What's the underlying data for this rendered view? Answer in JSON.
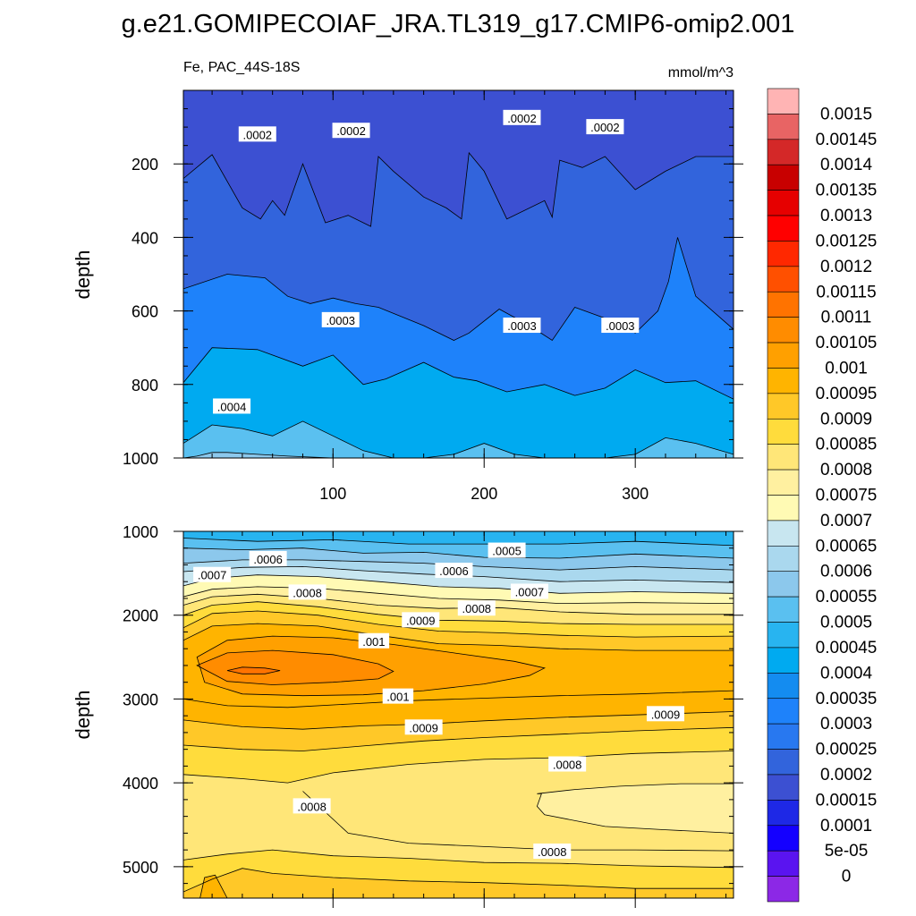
{
  "title": "g.e21.GOMIPECOIAF_JRA.TL319_g17.CMIP6-omip2.001",
  "chart_data": [
    {
      "type": "contour",
      "panel": "upper",
      "left_label": "Fe, PAC_44S-18S",
      "right_label": "mmol/m^3",
      "ylabel": "depth",
      "xlabel": "",
      "xlim": [
        1,
        365
      ],
      "ylim": [
        1000,
        0
      ],
      "x_ticks": [
        100,
        200,
        300
      ],
      "x_tick_labels": [
        "100",
        "200",
        "300"
      ],
      "y_ticks": [
        200,
        400,
        600,
        800,
        1000
      ],
      "y_tick_labels": [
        "200",
        "400",
        "600",
        "800",
        "1000"
      ],
      "contour_labels": [
        {
          "text": ".0002",
          "x": 50,
          "y": 120
        },
        {
          "text": ".0002",
          "x": 112,
          "y": 110
        },
        {
          "text": ".0002",
          "x": 225,
          "y": 75
        },
        {
          "text": ".0002",
          "x": 280,
          "y": 100
        },
        {
          "text": ".0003",
          "x": 105,
          "y": 625
        },
        {
          "text": ".0003",
          "x": 225,
          "y": 640
        },
        {
          "text": ".0003",
          "x": 290,
          "y": 640
        },
        {
          "text": ".0004",
          "x": 33,
          "y": 860
        }
      ],
      "contours": [
        {
          "level": 0.0002,
          "x": [
            1,
            20,
            40,
            52,
            60,
            68,
            80,
            95,
            110,
            125,
            130,
            140,
            160,
            175,
            185,
            190,
            200,
            215,
            240,
            245,
            250,
            265,
            280,
            300,
            320,
            340,
            365
          ],
          "y": [
            240,
            175,
            320,
            350,
            300,
            340,
            200,
            360,
            340,
            370,
            180,
            220,
            290,
            320,
            350,
            170,
            220,
            350,
            300,
            345,
            190,
            210,
            180,
            270,
            220,
            180,
            180
          ]
        },
        {
          "level": 0.0003,
          "x": [
            1,
            30,
            55,
            70,
            85,
            100,
            115,
            130,
            160,
            180,
            190,
            210,
            230,
            245,
            260,
            280,
            300,
            315,
            322,
            328,
            340,
            365
          ],
          "y": [
            540,
            500,
            510,
            560,
            580,
            565,
            580,
            590,
            640,
            680,
            660,
            595,
            640,
            680,
            590,
            620,
            660,
            600,
            520,
            400,
            560,
            650
          ]
        },
        {
          "level": 0.0004,
          "x": [
            1,
            20,
            50,
            80,
            100,
            120,
            135,
            160,
            180,
            195,
            215,
            240,
            260,
            280,
            300,
            320,
            340,
            365
          ],
          "y": [
            795,
            700,
            705,
            750,
            720,
            800,
            785,
            740,
            780,
            790,
            820,
            800,
            830,
            810,
            760,
            795,
            790,
            840
          ]
        },
        {
          "level": 0.0005,
          "x": [
            1,
            20,
            40,
            60,
            80,
            100,
            120,
            140,
            160,
            180,
            200,
            220,
            240,
            260,
            280,
            300,
            320,
            340,
            365
          ],
          "y": [
            960,
            910,
            920,
            940,
            900,
            940,
            980,
            1000,
            1000,
            990,
            960,
            990,
            1000,
            1000,
            1000,
            990,
            945,
            960,
            990
          ]
        },
        {
          "level": 0.00055,
          "x": [
            1,
            10,
            20,
            30,
            50,
            70,
            100
          ],
          "y": [
            1000,
            995,
            985,
            985,
            990,
            995,
            1000
          ]
        }
      ]
    },
    {
      "type": "contour",
      "panel": "lower",
      "ylabel": "depth",
      "xlabel": "",
      "xlim": [
        1,
        365
      ],
      "ylim": [
        5375,
        1000
      ],
      "x_ticks": [
        100,
        200,
        300
      ],
      "y_ticks": [
        1000,
        2000,
        3000,
        4000,
        5000
      ],
      "y_tick_labels": [
        "1000",
        "2000",
        "3000",
        "4000",
        "5000"
      ],
      "contour_labels": [
        {
          "text": ".0006",
          "x": 57,
          "y": 1330
        },
        {
          "text": ".0007",
          "x": 20,
          "y": 1520
        },
        {
          "text": ".0005",
          "x": 215,
          "y": 1230
        },
        {
          "text": ".0006",
          "x": 180,
          "y": 1470
        },
        {
          "text": ".0007",
          "x": 230,
          "y": 1720
        },
        {
          "text": ".0008",
          "x": 83,
          "y": 1730
        },
        {
          "text": ".0008",
          "x": 195,
          "y": 1920
        },
        {
          "text": ".0009",
          "x": 158,
          "y": 2060
        },
        {
          "text": ".001",
          "x": 127,
          "y": 2310
        },
        {
          "text": ".001",
          "x": 143,
          "y": 2970
        },
        {
          "text": ".0009",
          "x": 160,
          "y": 3340
        },
        {
          "text": ".0009",
          "x": 320,
          "y": 3180
        },
        {
          "text": ".0008",
          "x": 255,
          "y": 3780
        },
        {
          "text": ".0008",
          "x": 86,
          "y": 4280
        },
        {
          "text": ".0008",
          "x": 245,
          "y": 4820
        }
      ],
      "contours": [
        {
          "level": 0.0005,
          "x": [
            1,
            50,
            100,
            150,
            200,
            250,
            300,
            365
          ],
          "y": [
            1080,
            1120,
            1100,
            1150,
            1150,
            1150,
            1120,
            1170
          ]
        },
        {
          "level": 0.00055,
          "x": [
            1,
            40,
            80,
            120,
            160,
            200,
            250,
            300,
            365
          ],
          "y": [
            1200,
            1220,
            1200,
            1260,
            1250,
            1310,
            1320,
            1270,
            1320
          ]
        },
        {
          "level": 0.0006,
          "x": [
            1,
            40,
            80,
            120,
            160,
            200,
            250,
            300,
            365
          ],
          "y": [
            1380,
            1340,
            1340,
            1360,
            1380,
            1420,
            1460,
            1420,
            1460
          ]
        },
        {
          "level": 0.00065,
          "x": [
            1,
            40,
            80,
            120,
            160,
            200,
            250,
            300,
            365
          ],
          "y": [
            1480,
            1430,
            1420,
            1470,
            1510,
            1540,
            1600,
            1580,
            1610
          ]
        },
        {
          "level": 0.0007,
          "x": [
            1,
            20,
            50,
            90,
            130,
            170,
            210,
            250,
            300,
            365
          ],
          "y": [
            1650,
            1560,
            1520,
            1540,
            1600,
            1660,
            1680,
            1740,
            1720,
            1740
          ]
        },
        {
          "level": 0.00075,
          "x": [
            1,
            20,
            50,
            90,
            130,
            170,
            210,
            250,
            300,
            365
          ],
          "y": [
            1780,
            1690,
            1660,
            1680,
            1740,
            1800,
            1820,
            1860,
            1850,
            1860
          ]
        },
        {
          "level": 0.0008,
          "x": [
            1,
            20,
            50,
            90,
            130,
            170,
            210,
            250,
            300,
            365
          ],
          "y": [
            1880,
            1780,
            1750,
            1800,
            1880,
            1920,
            1910,
            1960,
            1990,
            1990
          ]
        },
        {
          "level": 0.00085,
          "x": [
            1,
            20,
            50,
            90,
            130,
            170,
            210,
            250,
            300,
            365
          ],
          "y": [
            2000,
            1880,
            1840,
            1900,
            1990,
            2060,
            2070,
            2100,
            2110,
            2110
          ]
        },
        {
          "level": 0.0009,
          "x": [
            1,
            20,
            50,
            90,
            130,
            170,
            210,
            250,
            300,
            365
          ],
          "y": [
            2150,
            1980,
            1950,
            2000,
            2110,
            2190,
            2210,
            2240,
            2260,
            2250
          ]
        },
        {
          "level": 0.00095,
          "x": [
            1,
            20,
            50,
            90,
            130,
            170,
            210,
            250,
            300,
            365
          ],
          "y": [
            2300,
            2130,
            2100,
            2130,
            2240,
            2340,
            2360,
            2400,
            2420,
            2420
          ]
        },
        {
          "level": 0.001,
          "x": [
            10,
            30,
            60,
            100,
            140,
            180,
            220,
            240,
            230,
            200,
            160,
            120,
            80,
            40,
            15,
            10
          ],
          "y": [
            2500,
            2300,
            2250,
            2270,
            2350,
            2450,
            2550,
            2630,
            2720,
            2820,
            2900,
            2950,
            2960,
            2940,
            2800,
            2500
          ],
          "closed": true
        },
        {
          "level": 0.00105,
          "x": [
            10,
            30,
            60,
            100,
            130,
            140,
            130,
            100,
            60,
            30,
            10
          ],
          "y": [
            2600,
            2450,
            2420,
            2470,
            2580,
            2670,
            2760,
            2800,
            2830,
            2790,
            2600
          ],
          "closed": true
        },
        {
          "level": 0.0011,
          "x": [
            30,
            40,
            55,
            65,
            55,
            40,
            30
          ],
          "y": [
            2660,
            2620,
            2630,
            2660,
            2700,
            2700,
            2660
          ],
          "closed": true
        },
        {
          "level": 0.00095,
          "x": [
            1,
            30,
            70,
            110,
            150,
            200,
            250,
            300,
            365
          ],
          "y": [
            3000,
            3080,
            3100,
            3060,
            3020,
            2990,
            2960,
            2940,
            2900
          ]
        },
        {
          "level": 0.0009,
          "x": [
            1,
            40,
            80,
            120,
            160,
            200,
            250,
            300,
            365
          ],
          "y": [
            3250,
            3330,
            3360,
            3320,
            3300,
            3260,
            3220,
            3190,
            3150
          ]
        },
        {
          "level": 0.00085,
          "x": [
            1,
            40,
            80,
            120,
            160,
            200,
            250,
            300,
            365
          ],
          "y": [
            3550,
            3600,
            3620,
            3560,
            3500,
            3460,
            3420,
            3380,
            3340
          ]
        },
        {
          "level": 0.0008,
          "x": [
            1,
            40,
            70,
            100,
            150,
            200,
            250,
            300,
            365
          ],
          "y": [
            3900,
            3950,
            4000,
            3880,
            3780,
            3720,
            3700,
            3650,
            3620
          ]
        },
        {
          "level": 0.00075,
          "x": [
            235,
            260,
            290,
            330,
            365,
            365,
            320,
            280,
            240,
            235,
            238
          ],
          "y": [
            4130,
            4080,
            4040,
            4010,
            4010,
            4600,
            4560,
            4520,
            4380,
            4280,
            4130
          ],
          "closed": true
        },
        {
          "level": 0.0008,
          "x": [
            80,
            110,
            150,
            200,
            250,
            300,
            365
          ],
          "y": [
            4100,
            4600,
            4720,
            4760,
            4800,
            4800,
            4810
          ]
        },
        {
          "level": 0.00085,
          "x": [
            1,
            30,
            60,
            100,
            150,
            200,
            250,
            300,
            365
          ],
          "y": [
            4920,
            4850,
            4800,
            4870,
            4900,
            4950,
            4960,
            4990,
            5010
          ]
        },
        {
          "level": 0.0009,
          "x": [
            1,
            20,
            40,
            60,
            100,
            150,
            200,
            250,
            300,
            365
          ],
          "y": [
            5300,
            5150,
            5020,
            5080,
            5130,
            5170,
            5190,
            5220,
            5260,
            5260
          ]
        },
        {
          "level": 0.00095,
          "x": [
            12,
            15,
            22,
            30
          ],
          "y": [
            5375,
            5130,
            5100,
            5375
          ]
        }
      ]
    },
    {
      "type": "colorbar",
      "levels": [
        "0.0015",
        "0.00145",
        "0.0014",
        "0.00135",
        "0.0013",
        "0.00125",
        "0.0012",
        "0.00115",
        "0.0011",
        "0.00105",
        "0.001",
        "0.00095",
        "0.0009",
        "0.00085",
        "0.0008",
        "0.00075",
        "0.0007",
        "0.00065",
        "0.0006",
        "0.00055",
        "0.0005",
        "0.00045",
        "0.0004",
        "0.00035",
        "0.0003",
        "0.00025",
        "0.0002",
        "0.00015",
        "0.0001",
        "5e-05",
        "0"
      ],
      "colors": [
        "#FFB4B4",
        "#E86464",
        "#D42828",
        "#C80000",
        "#E60000",
        "#FF0000",
        "#FF2800",
        "#FF5000",
        "#FF7300",
        "#FF8C00",
        "#FFA000",
        "#FFB400",
        "#FFC828",
        "#FFDC3C",
        "#FFE678",
        "#FFF0A0",
        "#FFFAB4",
        "#C8E6F0",
        "#AAD8EE",
        "#8CC8EC",
        "#5AC0F0",
        "#28B4F0",
        "#00AAF0",
        "#148CF0",
        "#1E82FA",
        "#2878F0",
        "#3264DC",
        "#3C50D2",
        "#1E28E6",
        "#1400FF",
        "#5A14F0",
        "#8C28E6"
      ]
    }
  ],
  "colors": {
    "axis": "#000000",
    "contour_line": "#000000",
    "label_background": "#ffffff"
  }
}
